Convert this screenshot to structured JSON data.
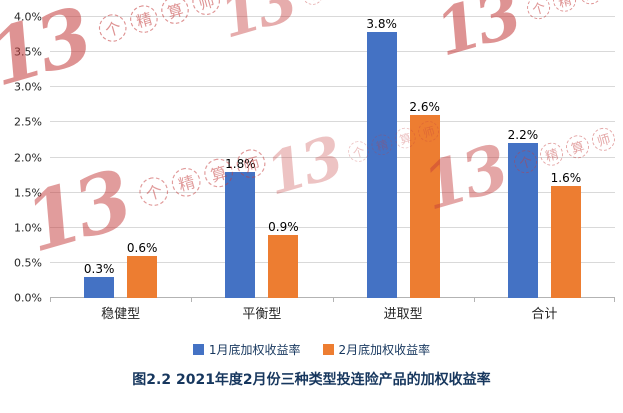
{
  "chart_data": {
    "type": "bar",
    "title": "图2.2 2021年度2月份三种类型投连险产品的加权收益率",
    "categories": [
      "稳健型",
      "平衡型",
      "进取型",
      "合计"
    ],
    "series": [
      {
        "name": "1月底加权收益率",
        "color": "#4472C4",
        "values": [
          0.3,
          1.8,
          3.8,
          2.2
        ],
        "labels": [
          "0.3%",
          "1.8%",
          "3.8%",
          "2.2%"
        ]
      },
      {
        "name": "2月底加权收益率",
        "color": "#ED7D31",
        "values": [
          0.6,
          0.9,
          2.6,
          1.6
        ],
        "labels": [
          "0.6%",
          "0.9%",
          "2.6%",
          "1.6%"
        ]
      }
    ],
    "ylim": [
      0,
      4
    ],
    "ytick_step": 0.5,
    "ytick_labels": [
      "0.0%",
      "0.5%",
      "1.0%",
      "1.5%",
      "2.0%",
      "2.5%",
      "3.0%",
      "3.5%",
      "4.0%"
    ],
    "grid": true,
    "legend_position": "bottom"
  },
  "watermark": {
    "big_text": "13",
    "small_text": "个精算师",
    "color": "#c43c3c"
  },
  "colors": {
    "gridline": "#d9d9d9",
    "axis": "#b3b3b3",
    "title_text": "#17375e"
  }
}
